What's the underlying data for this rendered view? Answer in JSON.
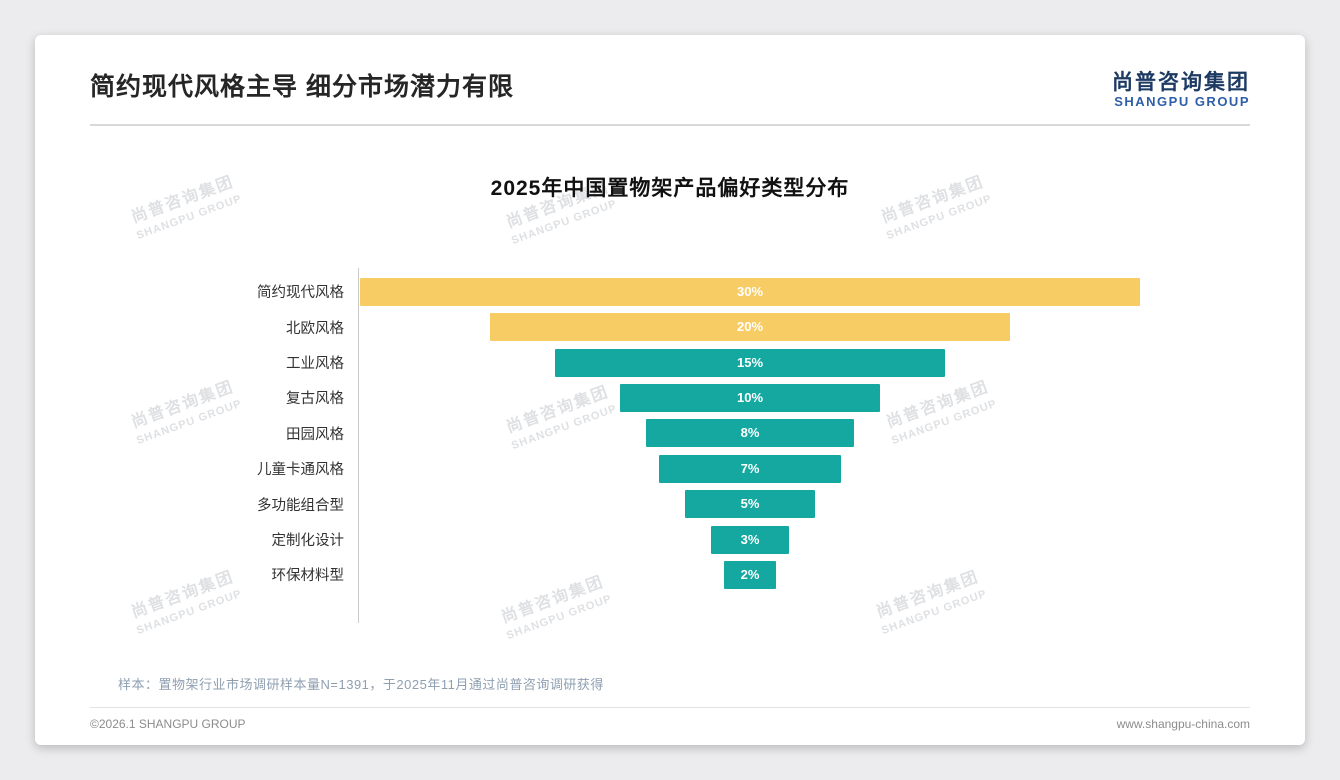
{
  "header": {
    "title": "简约现代风格主导 细分市场潜力有限",
    "logo_cn": "尚普咨询集团",
    "logo_en": "SHANGPU GROUP",
    "logo_cn_color": "#1d3a63",
    "logo_en_color": "#2e5ea8"
  },
  "chart_data": {
    "type": "bar",
    "orientation": "horizontal_centered_funnel",
    "title": "2025年中国置物架产品偏好类型分布",
    "categories": [
      "简约现代风格",
      "北欧风格",
      "工业风格",
      "复古风格",
      "田园风格",
      "儿童卡通风格",
      "多功能组合型",
      "定制化设计",
      "环保材料型"
    ],
    "values": [
      30,
      20,
      15,
      10,
      8,
      7,
      5,
      3,
      2
    ],
    "value_labels": [
      "30%",
      "20%",
      "15%",
      "10%",
      "8%",
      "7%",
      "5%",
      "3%",
      "2%"
    ],
    "unit": "%",
    "xlim": [
      0,
      30
    ],
    "bar_colors": [
      "#F8CC65",
      "#F8CC65",
      "#15A8A0",
      "#15A8A0",
      "#15A8A0",
      "#15A8A0",
      "#15A8A0",
      "#15A8A0",
      "#15A8A0"
    ],
    "legend": "none",
    "grid": "off"
  },
  "watermark": {
    "cn": "尚普咨询集团",
    "en": "SHANGPU GROUP"
  },
  "footer": {
    "note": "样本：置物架行业市场调研样本量N=1391，于2025年11月通过尚普咨询调研获得",
    "copyright": "©2026.1 SHANGPU GROUP",
    "website": "www.shangpu-china.com"
  }
}
